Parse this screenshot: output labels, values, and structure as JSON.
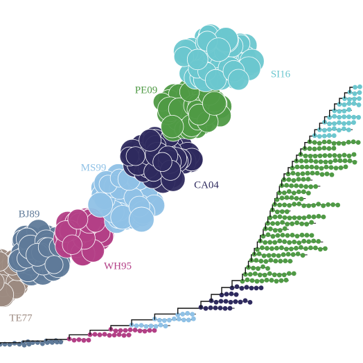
{
  "clusters": [
    {
      "label": "TE77",
      "color": "#9c8a80"
    },
    {
      "label": "BJ89",
      "color": "#5f7a99"
    },
    {
      "label": "WH95",
      "color": "#b33f86"
    },
    {
      "label": "MS99",
      "color": "#8fc1e6"
    },
    {
      "label": "CA04",
      "color": "#2e2a5e"
    },
    {
      "label": "PE09",
      "color": "#4f9a45"
    },
    {
      "label": "SI16",
      "color": "#6cc7cf"
    }
  ]
}
